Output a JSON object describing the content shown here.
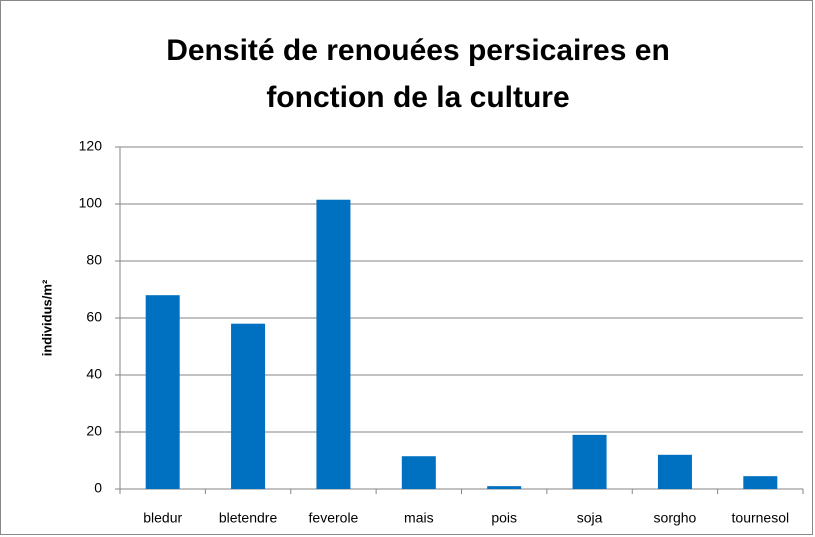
{
  "chart_data": {
    "type": "bar",
    "title": [
      "Densité de renouées persicaires en",
      "fonction de la culture"
    ],
    "y_label": "individus/m²",
    "categories": [
      "bledur",
      "bletendre",
      "feverole",
      "mais",
      "pois",
      "soja",
      "sorgho",
      "tournesol"
    ],
    "values": [
      68,
      58,
      101.5,
      11.5,
      1,
      19,
      12,
      4.5
    ],
    "color": "#0070c0",
    "ylim": [
      0,
      120
    ],
    "yticks": [
      0,
      20,
      40,
      60,
      80,
      100,
      120
    ],
    "grid": true
  }
}
